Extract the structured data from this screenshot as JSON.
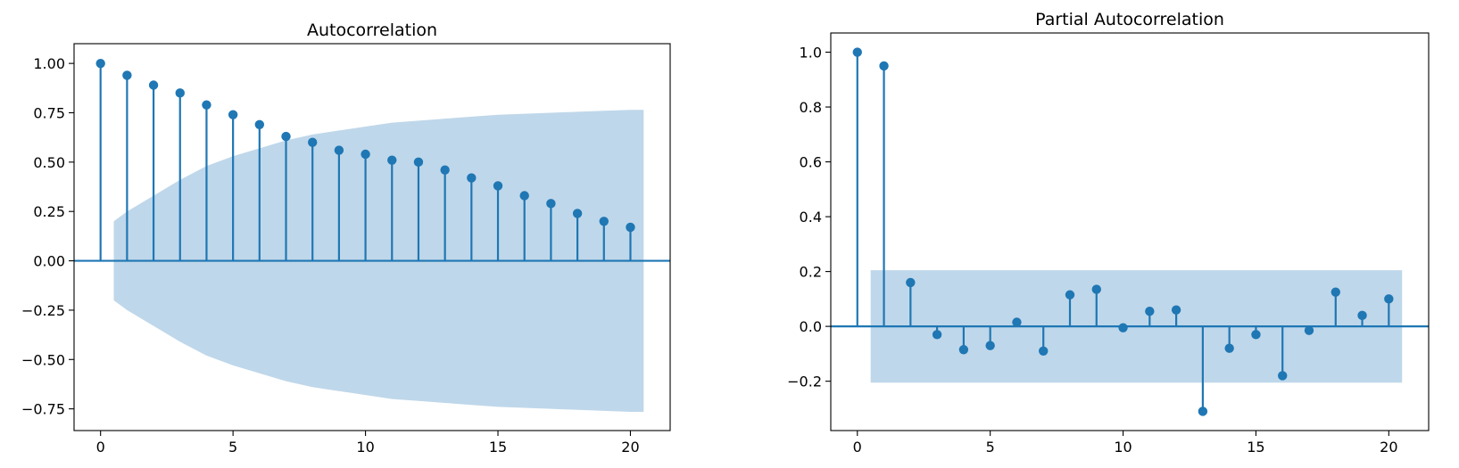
{
  "chart_data": [
    {
      "type": "stem",
      "title": "Autocorrelation",
      "xlabel": "",
      "ylabel": "",
      "xlim": [
        -1,
        21.5
      ],
      "ylim": [
        -0.86,
        1.1
      ],
      "xticks": [
        0,
        5,
        10,
        15,
        20
      ],
      "xtick_labels": [
        "0",
        "5",
        "10",
        "15",
        "20"
      ],
      "yticks": [
        1.0,
        0.75,
        0.5,
        0.25,
        0.0,
        -0.25,
        -0.5,
        -0.75
      ],
      "ytick_labels": [
        "1.00",
        "0.75",
        "0.50",
        "0.25",
        "0.00",
        "−0.25",
        "−0.50",
        "−0.75"
      ],
      "lags": [
        0,
        1,
        2,
        3,
        4,
        5,
        6,
        7,
        8,
        9,
        10,
        11,
        12,
        13,
        14,
        15,
        16,
        17,
        18,
        19,
        20
      ],
      "values": [
        1.0,
        0.94,
        0.89,
        0.85,
        0.79,
        0.74,
        0.69,
        0.63,
        0.6,
        0.56,
        0.54,
        0.51,
        0.5,
        0.46,
        0.42,
        0.38,
        0.33,
        0.29,
        0.24,
        0.2,
        0.17
      ],
      "confidence_band": {
        "lags": [
          0.5,
          1,
          2,
          3,
          4,
          5,
          6,
          7,
          8,
          9,
          10,
          11,
          12,
          13,
          14,
          15,
          16,
          17,
          18,
          19,
          20,
          20.5
        ],
        "upper": [
          0.2,
          0.25,
          0.33,
          0.41,
          0.48,
          0.53,
          0.57,
          0.61,
          0.64,
          0.66,
          0.68,
          0.7,
          0.71,
          0.72,
          0.73,
          0.74,
          0.745,
          0.75,
          0.755,
          0.76,
          0.765,
          0.765
        ]
      },
      "colors": {
        "stem": "#1f77b4",
        "band": "#aac9e3",
        "zero_line": "#1f77b4"
      },
      "grid": false
    },
    {
      "type": "stem",
      "title": "Partial Autocorrelation",
      "xlabel": "",
      "ylabel": "",
      "xlim": [
        -1,
        21.5
      ],
      "ylim": [
        -0.38,
        1.07
      ],
      "xticks": [
        0,
        5,
        10,
        15,
        20
      ],
      "xtick_labels": [
        "0",
        "5",
        "10",
        "15",
        "20"
      ],
      "yticks": [
        1.0,
        0.8,
        0.6,
        0.4,
        0.2,
        0.0,
        -0.2
      ],
      "ytick_labels": [
        "1.0",
        "0.8",
        "0.6",
        "0.4",
        "0.2",
        "0.0",
        "−0.2"
      ],
      "lags": [
        0,
        1,
        2,
        3,
        4,
        5,
        6,
        7,
        8,
        9,
        10,
        11,
        12,
        13,
        14,
        15,
        16,
        17,
        18,
        19,
        20
      ],
      "values": [
        1.0,
        0.95,
        0.16,
        -0.03,
        -0.085,
        -0.07,
        0.015,
        -0.09,
        0.115,
        0.135,
        -0.005,
        0.055,
        0.06,
        -0.31,
        -0.08,
        -0.03,
        -0.18,
        -0.015,
        0.125,
        0.04,
        0.1
      ],
      "confidence_band": {
        "lags": [
          0.5,
          20.5
        ],
        "upper": [
          0.205,
          0.205
        ]
      },
      "colors": {
        "stem": "#1f77b4",
        "band": "#aac9e3",
        "zero_line": "#1f77b4"
      },
      "grid": false
    }
  ]
}
